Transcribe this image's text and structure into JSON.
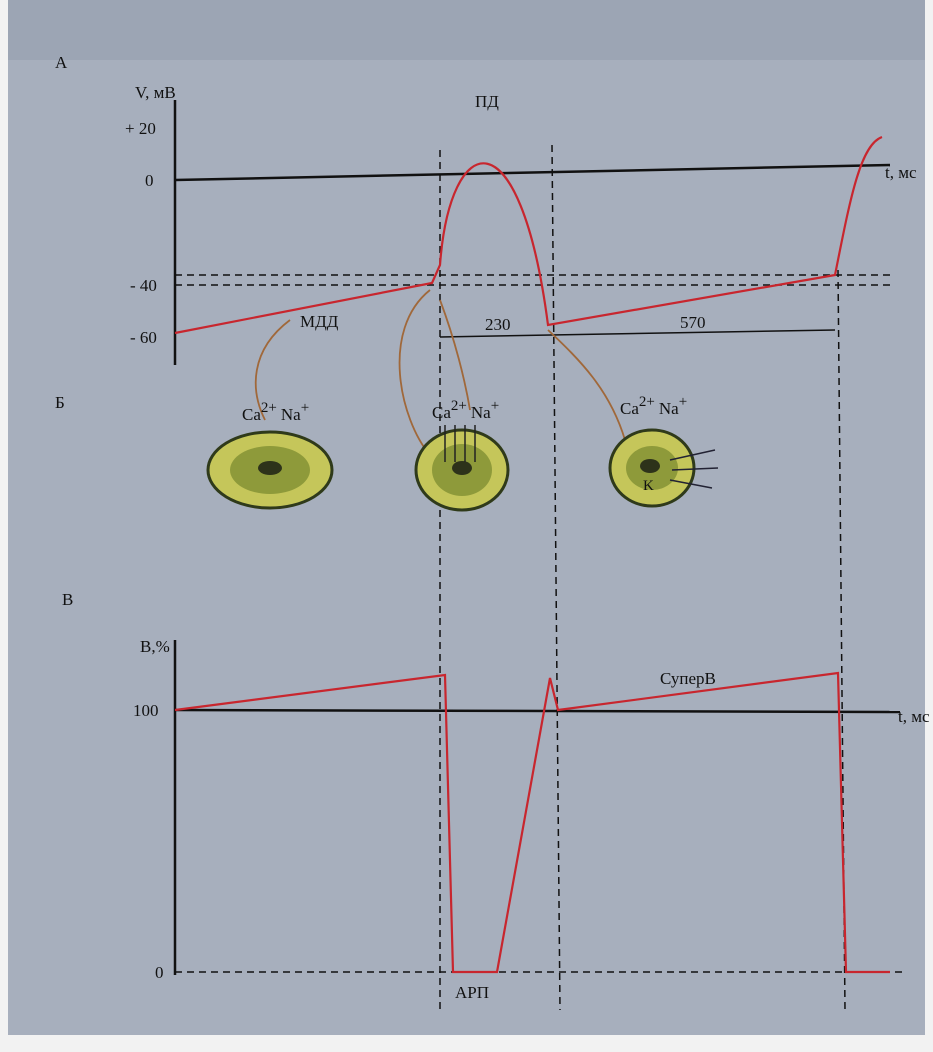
{
  "panel_a": {
    "label": "А",
    "y_axis_label": "V, мВ",
    "y_ticks": [
      "+ 20",
      "0",
      "- 40",
      "- 60"
    ],
    "x_axis_label": "t, мс",
    "peak_label": "ПД",
    "slope_label": "МДД",
    "intervals": [
      "230",
      "570"
    ]
  },
  "panel_b": {
    "label": "Б",
    "cells": [
      {
        "ion1": "Ca",
        "charge1": "2+",
        "ion2": "Na",
        "charge2": "+"
      },
      {
        "ion1": "Ca",
        "charge1": "2+",
        "ion2": "Na",
        "charge2": "+"
      },
      {
        "ion1": "Ca",
        "charge1": "2+",
        "ion2": "Na",
        "charge2": "+",
        "inner": "K"
      }
    ]
  },
  "panel_c": {
    "label": "В",
    "y_axis_label": "B,%",
    "y_ticks": [
      "100",
      "0"
    ],
    "x_axis_label": "t, мс",
    "supernormal_label": "СуперВ",
    "refractory_label": "АРП"
  }
}
